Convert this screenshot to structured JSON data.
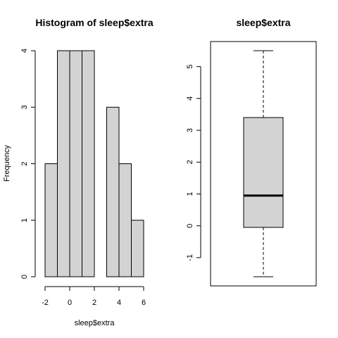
{
  "chart_data": [
    {
      "type": "bar",
      "title": "Histogram of sleep$extra",
      "xlabel": "sleep$extra",
      "ylabel": "Frequency",
      "bin_edges": [
        -2,
        -1,
        0,
        1,
        2,
        3,
        4,
        5,
        6
      ],
      "values": [
        2,
        4,
        4,
        4,
        0,
        3,
        2,
        1
      ],
      "xlim": [
        -2,
        6
      ],
      "ylim": [
        0,
        4
      ],
      "x_ticks": [
        -2,
        0,
        2,
        4,
        6
      ],
      "y_ticks": [
        0,
        1,
        2,
        3,
        4
      ],
      "bar_color": "#d3d3d3",
      "grid": false
    },
    {
      "type": "boxplot",
      "title": "sleep$extra",
      "stats": {
        "min": -1.6,
        "q1": -0.05,
        "median": 0.95,
        "q3": 3.4,
        "max": 5.5
      },
      "ylim": [
        -1.6,
        5.5
      ],
      "y_ticks": [
        -1,
        0,
        1,
        2,
        3,
        4,
        5
      ],
      "box_color": "#d3d3d3",
      "grid": false
    }
  ]
}
